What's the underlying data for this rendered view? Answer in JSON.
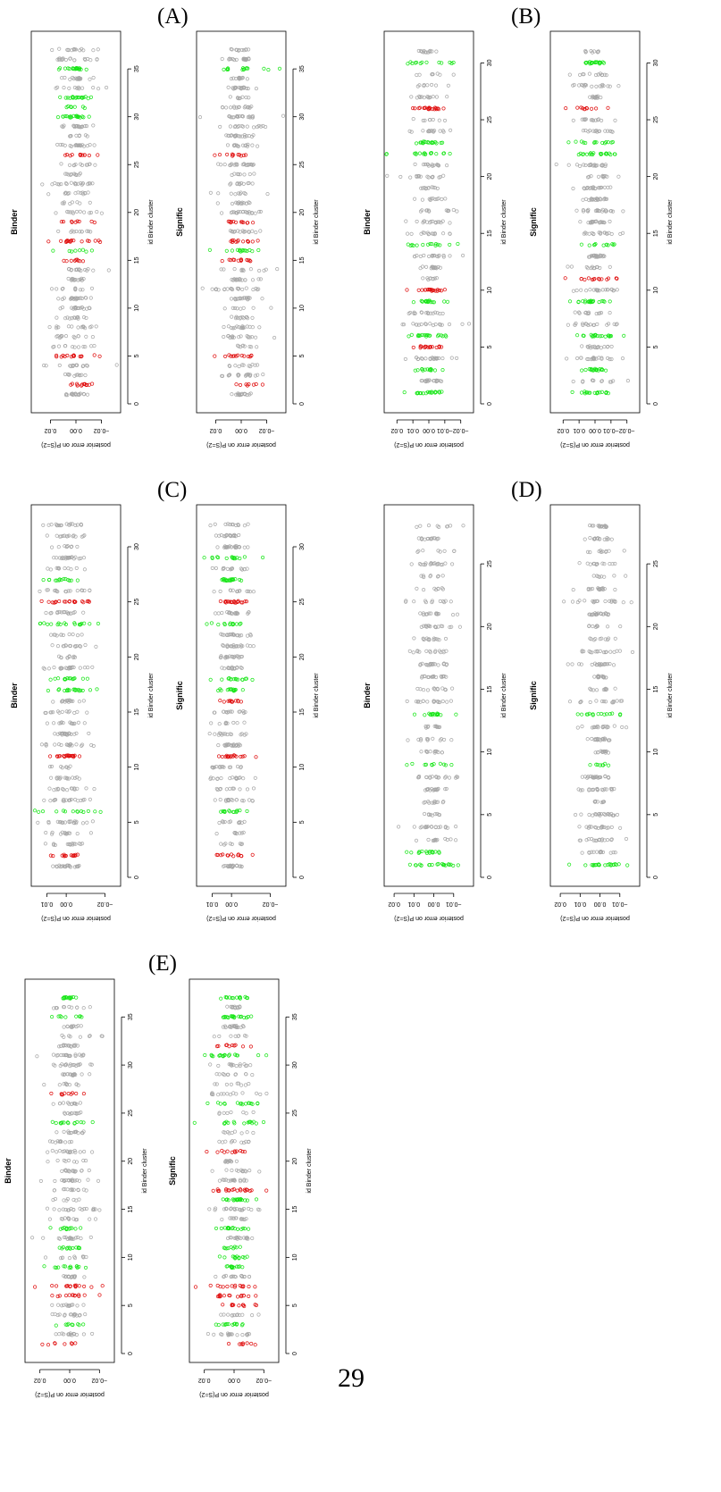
{
  "page_number": "29",
  "panels": [
    {
      "label": "(A)"
    },
    {
      "label": "(B)"
    },
    {
      "label": "(C)"
    },
    {
      "label": "(D)"
    },
    {
      "label": "(E)"
    }
  ],
  "colors": {
    "gray": "#a8a8a8",
    "green": "#19e619",
    "red": "#e01010"
  },
  "chart_data": [
    {
      "type": "scatter",
      "panel": "(A)",
      "title": "Binder",
      "xlabel": "id Binder cluster",
      "ylabel": "posterior error on P(S=2)",
      "x_ticks": [
        0,
        5,
        10,
        15,
        20,
        25,
        30,
        35
      ],
      "xlim": [
        0,
        38
      ],
      "y_ticks": [
        0.02,
        0.0,
        -0.02
      ],
      "y_tick_labels": [
        "0.02",
        "0.00",
        "−0.02"
      ],
      "ylim": [
        -0.035,
        0.035
      ],
      "n_clusters": 37,
      "green_clusters": [
        16,
        30,
        31,
        32,
        35
      ],
      "red_clusters": [
        2,
        5,
        15,
        17,
        19,
        26
      ]
    },
    {
      "type": "scatter",
      "panel": "(A)",
      "title": "Signific",
      "xlabel": "id Binder cluster",
      "ylabel": "posterior error on P(S=2)",
      "x_ticks": [
        0,
        5,
        10,
        15,
        20,
        25,
        30,
        35
      ],
      "xlim": [
        0,
        38
      ],
      "y_ticks": [
        0.02,
        0.0,
        -0.02
      ],
      "y_tick_labels": [
        "0.02",
        "0.00",
        "−0.02"
      ],
      "ylim": [
        -0.035,
        0.035
      ],
      "n_clusters": 37,
      "green_clusters": [
        16,
        35
      ],
      "red_clusters": [
        2,
        5,
        15,
        17,
        19,
        26
      ]
    },
    {
      "type": "scatter",
      "panel": "(B)",
      "title": "Binder",
      "xlabel": "id Binder cluster",
      "ylabel": "posterior error on P(S=2)",
      "x_ticks": [
        0,
        5,
        10,
        15,
        20,
        25,
        30
      ],
      "xlim": [
        0,
        32
      ],
      "y_ticks": [
        0.02,
        0.01,
        0.0,
        -0.01,
        -0.02
      ],
      "y_tick_labels": [
        "0.02",
        "0.01",
        "0.00",
        "−0.01",
        "−0.02"
      ],
      "ylim": [
        -0.028,
        0.028
      ],
      "n_clusters": 31,
      "green_clusters": [
        1,
        3,
        6,
        9,
        14,
        22,
        23,
        30
      ],
      "red_clusters": [
        5,
        10,
        26
      ]
    },
    {
      "type": "scatter",
      "panel": "(B)",
      "title": "Signific",
      "xlabel": "id Binder cluster",
      "ylabel": "posterior error on P(S=2)",
      "x_ticks": [
        0,
        5,
        10,
        15,
        20,
        25,
        30
      ],
      "xlim": [
        0,
        32
      ],
      "y_ticks": [
        0.02,
        0.01,
        0.0,
        -0.01,
        -0.02
      ],
      "y_tick_labels": [
        "0.02",
        "0.01",
        "0.00",
        "−0.01",
        "−0.02"
      ],
      "ylim": [
        -0.028,
        0.028
      ],
      "n_clusters": 31,
      "green_clusters": [
        1,
        3,
        6,
        9,
        14,
        22,
        23,
        30
      ],
      "red_clusters": [
        11,
        26
      ]
    },
    {
      "type": "scatter",
      "panel": "(C)",
      "title": "Binder",
      "xlabel": "id Binder cluster",
      "ylabel": "posterior error on P(S=2)",
      "x_ticks": [
        0,
        5,
        10,
        15,
        20,
        25,
        30
      ],
      "xlim": [
        0,
        33
      ],
      "y_ticks": [
        0.01,
        0.0,
        -0.02
      ],
      "y_tick_labels": [
        "0.01",
        "0.00",
        "−0.02"
      ],
      "ylim": [
        -0.028,
        0.018
      ],
      "n_clusters": 32,
      "green_clusters": [
        6,
        17,
        18,
        23,
        27
      ],
      "red_clusters": [
        2,
        11,
        25
      ]
    },
    {
      "type": "scatter",
      "panel": "(C)",
      "title": "Signific",
      "xlabel": "id Binder cluster",
      "ylabel": "posterior error on P(S=2)",
      "x_ticks": [
        0,
        5,
        10,
        15,
        20,
        25,
        30
      ],
      "xlim": [
        0,
        33
      ],
      "y_ticks": [
        0.01,
        0.0,
        -0.02
      ],
      "y_tick_labels": [
        "0.01",
        "0.00",
        "−0.02"
      ],
      "ylim": [
        -0.028,
        0.018
      ],
      "n_clusters": 32,
      "green_clusters": [
        6,
        17,
        18,
        23,
        27,
        29
      ],
      "red_clusters": [
        2,
        11,
        16,
        25
      ]
    },
    {
      "type": "scatter",
      "panel": "(D)",
      "title": "Binder",
      "xlabel": "id Binder cluster",
      "ylabel": "posterior error on P(S=2)",
      "x_ticks": [
        0,
        5,
        10,
        15,
        20,
        25
      ],
      "xlim": [
        0,
        29
      ],
      "y_ticks": [
        0.02,
        0.01,
        0.0,
        -0.01
      ],
      "y_tick_labels": [
        "0.02",
        "0.01",
        "0.00",
        "−0.01"
      ],
      "ylim": [
        -0.02,
        0.025
      ],
      "n_clusters": 28,
      "green_clusters": [
        1,
        2,
        9,
        13
      ],
      "red_clusters": []
    },
    {
      "type": "scatter",
      "panel": "(D)",
      "title": "Signific",
      "xlabel": "id Binder cluster",
      "ylabel": "posterior error on P(S=2)",
      "x_ticks": [
        0,
        5,
        10,
        15,
        20,
        25
      ],
      "xlim": [
        0,
        29
      ],
      "y_ticks": [
        0.02,
        0.01,
        0.0,
        -0.01
      ],
      "y_tick_labels": [
        "0.02",
        "0.01",
        "0.00",
        "−0.01"
      ],
      "ylim": [
        -0.02,
        0.025
      ],
      "n_clusters": 28,
      "green_clusters": [
        1,
        9,
        13
      ],
      "red_clusters": []
    },
    {
      "type": "scatter",
      "panel": "(E)",
      "title": "Binder",
      "xlabel": "id Binder cluster",
      "ylabel": "posterior error on P(S=2)",
      "x_ticks": [
        0,
        5,
        10,
        15,
        20,
        25,
        30,
        35
      ],
      "xlim": [
        0,
        38
      ],
      "y_ticks": [
        0.02,
        0.0,
        -0.02
      ],
      "y_tick_labels": [
        "0.02",
        "0.00",
        "−0.02"
      ],
      "ylim": [
        -0.03,
        0.03
      ],
      "n_clusters": 37,
      "green_clusters": [
        3,
        9,
        11,
        13,
        24,
        35,
        37
      ],
      "red_clusters": [
        1,
        6,
        7,
        27
      ]
    },
    {
      "type": "scatter",
      "panel": "(E)",
      "title": "Signific",
      "xlabel": "id Binder cluster",
      "ylabel": "posterior error on P(S=2)",
      "x_ticks": [
        0,
        5,
        10,
        15,
        20,
        25,
        30,
        35
      ],
      "xlim": [
        0,
        38
      ],
      "y_ticks": [
        0.02,
        0.0,
        -0.02
      ],
      "y_tick_labels": [
        "0.02",
        "0.00",
        "−0.02"
      ],
      "ylim": [
        -0.03,
        0.03
      ],
      "n_clusters": 37,
      "green_clusters": [
        3,
        9,
        10,
        11,
        13,
        16,
        17,
        24,
        26,
        31,
        35,
        37
      ],
      "red_clusters": [
        1,
        5,
        6,
        7,
        17,
        21,
        32
      ]
    }
  ]
}
